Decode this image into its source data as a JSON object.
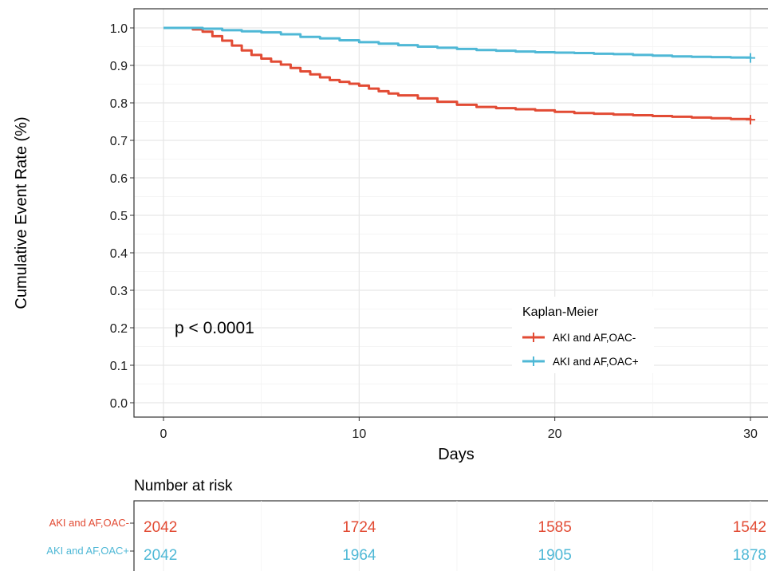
{
  "chart_data": {
    "type": "line",
    "subtype": "kaplan-meier",
    "title": "",
    "xlabel": "Days",
    "ylabel": "Cumulative Event Rate (%)",
    "xlim": [
      0,
      30
    ],
    "ylim": [
      0,
      1
    ],
    "x_ticks": [
      0,
      10,
      20,
      30
    ],
    "y_ticks": [
      0.0,
      0.1,
      0.2,
      0.3,
      0.4,
      0.5,
      0.6,
      0.7,
      0.8,
      0.9,
      1.0
    ],
    "x_tick_labels": [
      "0",
      "10",
      "20",
      "30"
    ],
    "y_tick_labels": [
      "0.0",
      "0.1",
      "0.2",
      "0.3",
      "0.4",
      "0.5",
      "0.6",
      "0.7",
      "0.8",
      "0.9",
      "1.0"
    ],
    "grid": true,
    "annotation": "p < 0.0001",
    "legend": {
      "title": "Kaplan-Meier",
      "position": "bottom-right"
    },
    "series": [
      {
        "name": "AKI and AF,OAC-",
        "color": "#E24B34",
        "x": [
          0,
          1.0,
          1.5,
          2.0,
          2.5,
          3.0,
          3.5,
          4.0,
          4.5,
          5.0,
          5.5,
          6.0,
          6.5,
          7.0,
          7.5,
          8.0,
          8.5,
          9.0,
          9.5,
          10.0,
          10.5,
          11.0,
          11.5,
          12.0,
          13.0,
          14.0,
          15.0,
          16.0,
          17.0,
          18.0,
          19.0,
          20.0,
          21.0,
          22.0,
          23.0,
          24.0,
          25.0,
          26.0,
          27.0,
          28.0,
          29.0,
          30.0
        ],
        "y": [
          1.0,
          1.0,
          0.996,
          0.99,
          0.978,
          0.966,
          0.953,
          0.94,
          0.928,
          0.918,
          0.91,
          0.902,
          0.893,
          0.884,
          0.876,
          0.868,
          0.861,
          0.856,
          0.851,
          0.846,
          0.838,
          0.831,
          0.825,
          0.82,
          0.812,
          0.803,
          0.795,
          0.789,
          0.786,
          0.783,
          0.78,
          0.776,
          0.773,
          0.771,
          0.769,
          0.767,
          0.765,
          0.763,
          0.761,
          0.759,
          0.757,
          0.755
        ]
      },
      {
        "name": "AKI and AF,OAC+",
        "color": "#4FB8D6",
        "x": [
          0,
          1.0,
          2.0,
          3.0,
          4.0,
          5.0,
          6.0,
          7.0,
          8.0,
          9.0,
          10.0,
          11.0,
          12.0,
          13.0,
          14.0,
          15.0,
          16.0,
          17.0,
          18.0,
          19.0,
          20.0,
          21.0,
          22.0,
          23.0,
          24.0,
          25.0,
          26.0,
          27.0,
          28.0,
          29.0,
          30.0
        ],
        "y": [
          1.0,
          1.0,
          0.998,
          0.994,
          0.991,
          0.988,
          0.983,
          0.976,
          0.972,
          0.967,
          0.962,
          0.958,
          0.954,
          0.95,
          0.947,
          0.944,
          0.941,
          0.939,
          0.937,
          0.935,
          0.934,
          0.933,
          0.931,
          0.93,
          0.928,
          0.926,
          0.924,
          0.923,
          0.922,
          0.921,
          0.92
        ]
      }
    ],
    "risk_table": {
      "title": "Number at risk",
      "times": [
        0,
        10,
        20,
        30
      ],
      "rows": [
        {
          "label": "AKI and AF,OAC-",
          "color": "#E24B34",
          "counts": [
            "2042",
            "1724",
            "1585",
            "1542"
          ]
        },
        {
          "label": "AKI and AF,OAC+",
          "color": "#4FB8D6",
          "counts": [
            "2042",
            "1964",
            "1905",
            "1878"
          ]
        }
      ]
    }
  }
}
